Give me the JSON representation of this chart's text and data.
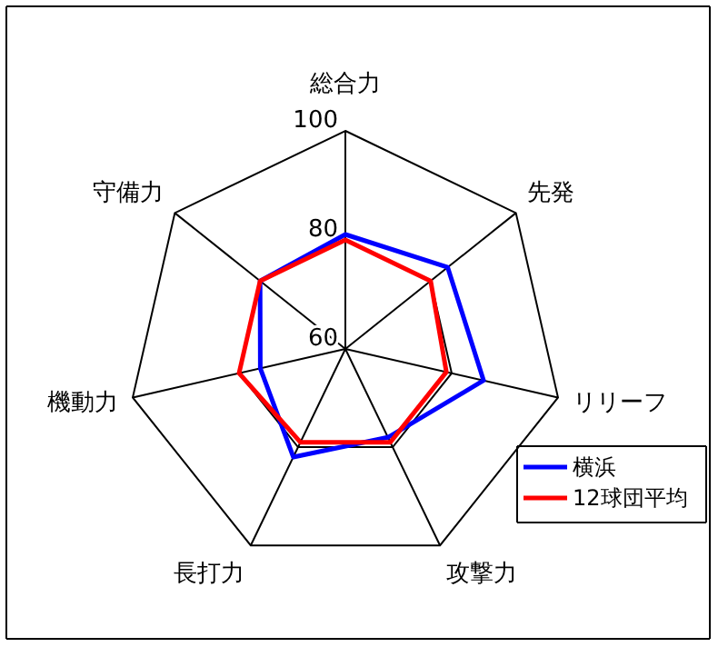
{
  "chart_data": {
    "type": "radar",
    "categories": [
      "総合力",
      "先発",
      "リリーフ",
      "攻撃力",
      "長打力",
      "機動力",
      "守備力"
    ],
    "ylim": [
      60,
      100
    ],
    "yticks": [
      60,
      80,
      100
    ],
    "legend": "right",
    "series": [
      {
        "name": "横浜",
        "color": "#0000ff",
        "values": [
          81,
          84,
          86,
          78,
          82,
          76,
          80
        ]
      },
      {
        "name": "12球団平均",
        "color": "#ff0000",
        "values": [
          80,
          80,
          79,
          79,
          79,
          80,
          80
        ]
      }
    ]
  }
}
